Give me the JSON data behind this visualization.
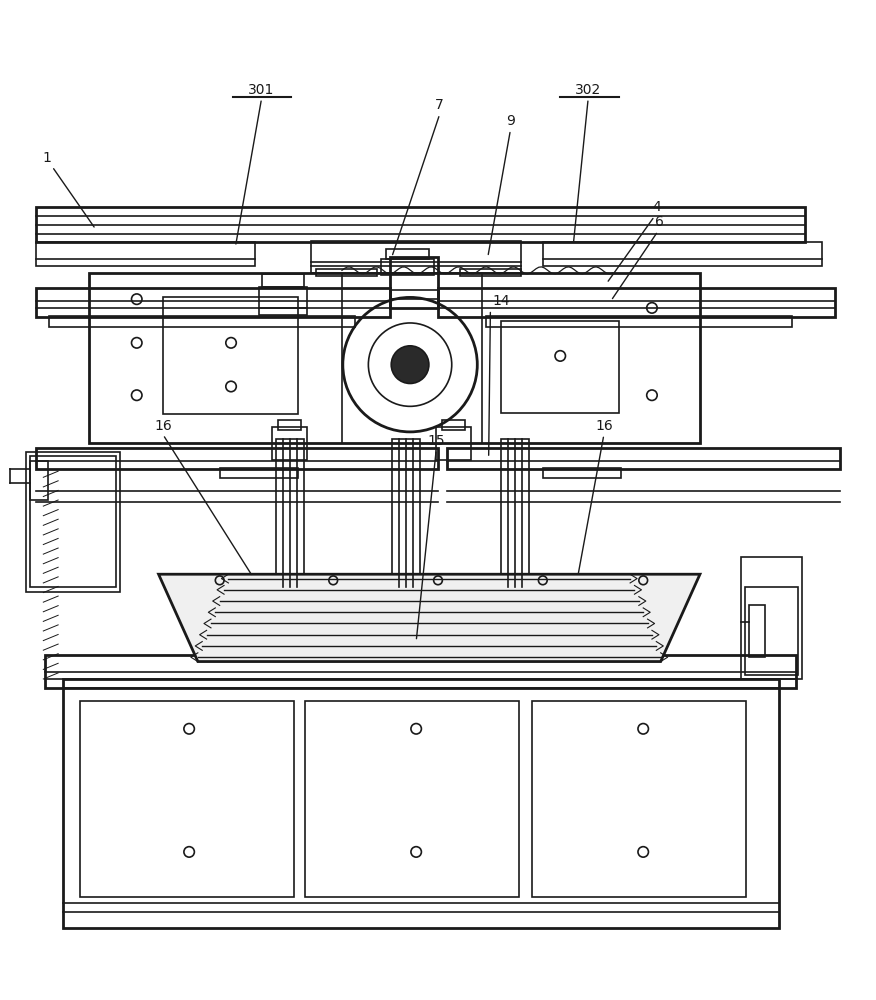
{
  "bg_color": "#ffffff",
  "line_color": "#1a1a1a",
  "line_width": 1.2,
  "thick_line": 2.0,
  "label_font": 10
}
